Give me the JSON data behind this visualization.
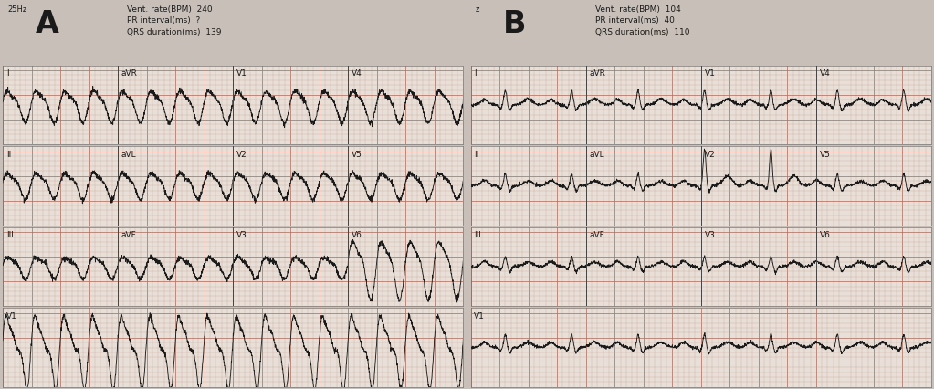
{
  "bg_color": "#c8c0b8",
  "ecg_bg": "#e8e0d8",
  "grid_minor_color": "#c8a090",
  "grid_major_color": "#b07060",
  "ecg_color": "#1a1a1a",
  "separator_color": "#444444",
  "text_color": "#1a1a1a",
  "panel_A": {
    "label": "A",
    "speed_label": "25Hz",
    "header_line1": "Vent. rate(BPM)  240",
    "header_line2": "PR interval(ms)  ?",
    "header_line3": "QRS duration(ms)  139",
    "row_labels": [
      [
        "I",
        "aVR",
        "V1",
        "V4"
      ],
      [
        "II",
        "aVL",
        "V2",
        "V5"
      ],
      [
        "III",
        "aVF",
        "V3",
        "V6"
      ],
      [
        "V1"
      ]
    ]
  },
  "panel_B": {
    "label": "B",
    "speed_label": "z",
    "header_line1": "Vent. rate(BPM)  104",
    "header_line2": "PR interval(ms)  40",
    "header_line3": "QRS duration(ms)  110",
    "row_labels": [
      [
        "I",
        "aVR",
        "V1",
        "V4"
      ],
      [
        "II",
        "aVL",
        "V2",
        "V5"
      ],
      [
        "III",
        "aVF",
        "V3",
        "V6"
      ],
      [
        "V1"
      ]
    ]
  },
  "header_fontsize": 6.5,
  "label_fontsize": 6.5,
  "panel_letter_fontsize": 24,
  "speed_fontsize": 6.0
}
